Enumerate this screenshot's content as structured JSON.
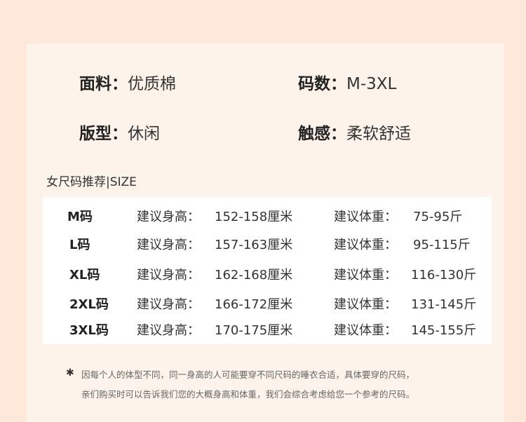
{
  "attributes": [
    {
      "label": "面料：",
      "value": "优质棉"
    },
    {
      "label": "码数：",
      "value": "M-3XL"
    },
    {
      "label": "版型：",
      "value": "休闲"
    },
    {
      "label": "触感：",
      "value": "柔软舒适"
    }
  ],
  "section_title": "女尺码推荐|SIZE",
  "height_label": "建议身高：",
  "weight_label": "建议体重：",
  "rows": [
    {
      "size": "M码",
      "height": "152-158厘米",
      "weight": "75-95斤"
    },
    {
      "size": "L码",
      "height": "157-163厘米",
      "weight": "95-115斤"
    },
    {
      "size": "XL码",
      "height": "162-168厘米",
      "weight": "116-130斤"
    },
    {
      "size": "2XL码",
      "height": "166-172厘米",
      "weight": "131-145斤"
    },
    {
      "size": "3XL码",
      "height": "170-175厘米",
      "weight": "145-155斤"
    }
  ],
  "note_icon": "star-asterisk-icon",
  "note_lines": [
    "因每个人的体型不同，同一身高的人可能要穿不同尺码的睡衣合适，具体要穿的尺码，",
    "亲们购买时可以告诉我们您的大概身高和体重，我们会综合考虑给您一个参考的尺码。"
  ],
  "colors": {
    "background": "#fde8da",
    "card": "#fdf3ea",
    "table": "#ffffff"
  }
}
